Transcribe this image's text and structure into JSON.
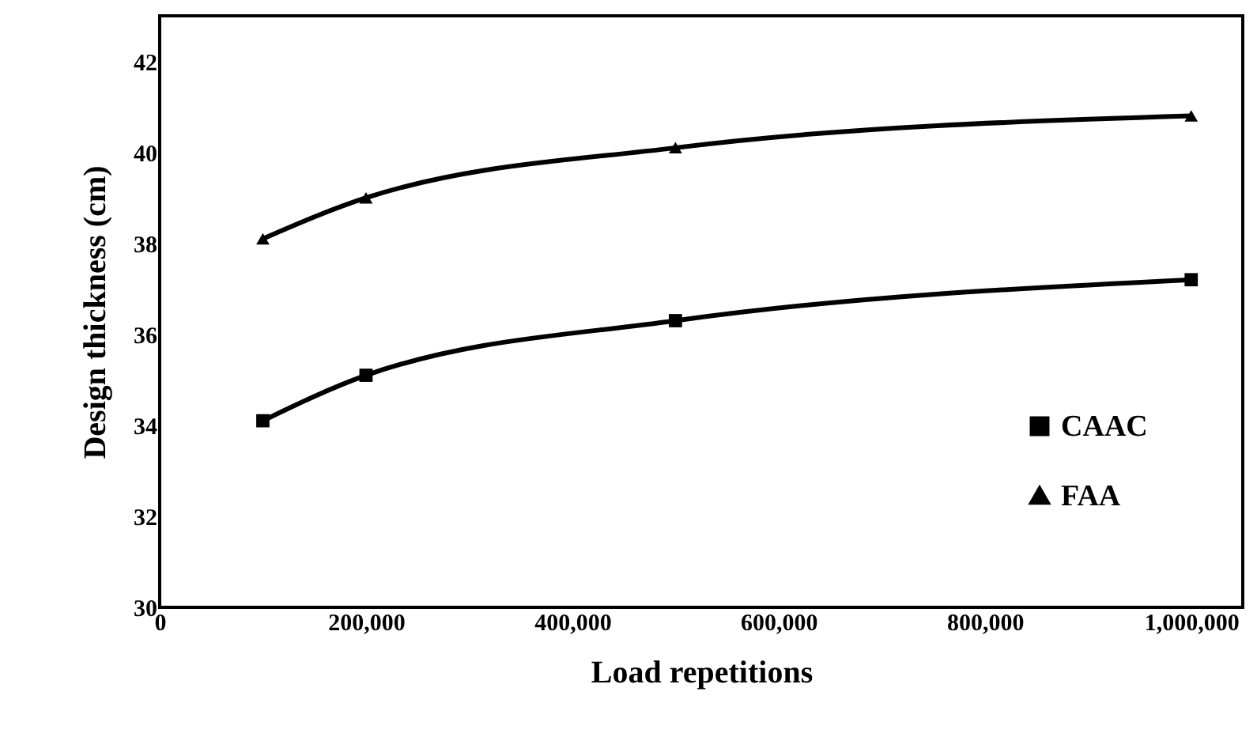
{
  "chart_data": {
    "type": "line",
    "xlabel": "Load repetitions",
    "ylabel": "Design thickness (cm)",
    "x": [
      100000,
      200000,
      500000,
      1000000
    ],
    "series": [
      {
        "name": "CAAC",
        "color": "#000000",
        "marker": "square",
        "values": [
          34.1,
          35.1,
          36.3,
          37.2
        ]
      },
      {
        "name": "FAA",
        "color": "#000000",
        "marker": "triangle",
        "values": [
          38.1,
          39.0,
          40.1,
          40.8
        ]
      }
    ],
    "xlim": [
      0,
      1050000
    ],
    "xticks": [
      0,
      {
        "value": 200000,
        "label": "200,000"
      },
      {
        "value": 400000,
        "label": "400,000"
      },
      {
        "value": 600000,
        "label": "600,000"
      },
      {
        "value": 800000,
        "label": "800,000"
      },
      {
        "value": 1000000,
        "label": "1,000,000"
      }
    ],
    "ylim": [
      30,
      43
    ],
    "yticks": [
      30,
      32,
      34,
      36,
      38,
      40,
      42
    ],
    "grid": false,
    "legend": "bottom right",
    "line_style": "solid"
  }
}
